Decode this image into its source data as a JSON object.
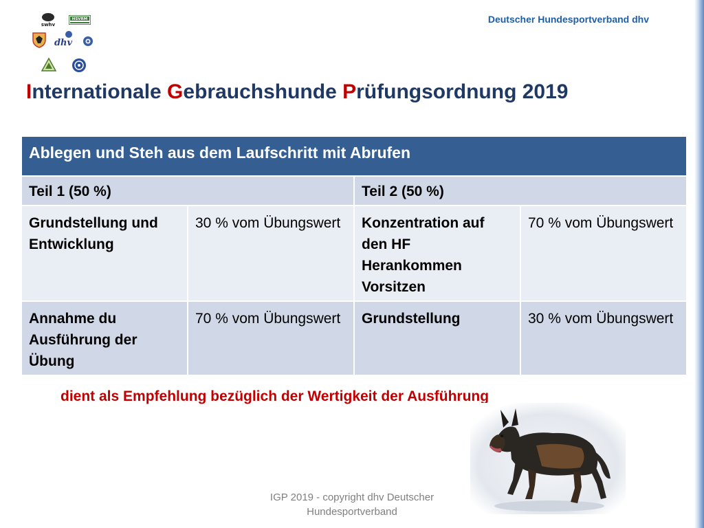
{
  "header": {
    "org_name": "Deutscher Hundesportverband dhv",
    "logos": {
      "swhv": "swhv",
      "hsvrm": "HSVRM",
      "dhv": "dhv"
    }
  },
  "title": {
    "part1_initial": "I",
    "part1_rest": "nternationale ",
    "part2_initial": "G",
    "part2_rest": "ebrauchshunde ",
    "part3_initial": "P",
    "part3_rest": "rüfungsordnung 2019"
  },
  "table": {
    "heading": "Ablegen und Steh aus dem Laufschritt mit Abrufen",
    "part1_header": "Teil 1 (50 %)",
    "part2_header": "Teil 2 (50 %)",
    "rows": [
      {
        "p1_item": "Grundstellung und Entwicklung",
        "p1_value": "30 % vom Übungswert",
        "p2_item": "Konzentration auf den HF Herankommen Vorsitzen",
        "p2_value": "70 % vom Übungswert"
      },
      {
        "p1_item": "Annahme du Ausführung der Übung",
        "p1_value": "70 % vom Übungswert",
        "p2_item": "Grundstellung",
        "p2_value": "30 % vom Übungswert"
      }
    ]
  },
  "recommendation": "dient als Empfehlung bezüglich der Wertigkeit der Ausführung",
  "footer": {
    "line1": "IGP 2019 -  copyright dhv Deutscher",
    "line2": "Hundesportverband"
  },
  "colors": {
    "title": "#1f3864",
    "accent": "#c00000",
    "table_header": "#355f92",
    "row_dark": "#d0d8e8",
    "row_light": "#e9edf4",
    "org_name": "#1f5ea8",
    "footer": "#7f7f7f"
  }
}
